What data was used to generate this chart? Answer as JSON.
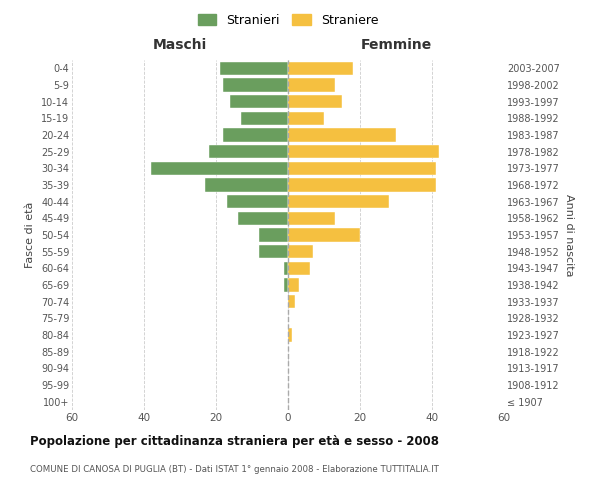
{
  "age_groups": [
    "100+",
    "95-99",
    "90-94",
    "85-89",
    "80-84",
    "75-79",
    "70-74",
    "65-69",
    "60-64",
    "55-59",
    "50-54",
    "45-49",
    "40-44",
    "35-39",
    "30-34",
    "25-29",
    "20-24",
    "15-19",
    "10-14",
    "5-9",
    "0-4"
  ],
  "birth_years": [
    "≤ 1907",
    "1908-1912",
    "1913-1917",
    "1918-1922",
    "1923-1927",
    "1928-1932",
    "1933-1937",
    "1938-1942",
    "1943-1947",
    "1948-1952",
    "1953-1957",
    "1958-1962",
    "1963-1967",
    "1968-1972",
    "1973-1977",
    "1978-1982",
    "1983-1987",
    "1988-1992",
    "1993-1997",
    "1998-2002",
    "2003-2007"
  ],
  "maschi": [
    0,
    0,
    0,
    0,
    0,
    0,
    0,
    1,
    1,
    8,
    8,
    14,
    17,
    23,
    38,
    22,
    18,
    13,
    16,
    18,
    19
  ],
  "femmine": [
    0,
    0,
    0,
    0,
    1,
    0,
    2,
    3,
    6,
    7,
    20,
    13,
    28,
    41,
    41,
    42,
    30,
    10,
    15,
    13,
    18
  ],
  "color_maschi": "#6a9e5e",
  "color_femmine": "#f5c040",
  "title_main": "Popolazione per cittadinanza straniera per età e sesso - 2008",
  "title_sub": "COMUNE DI CANOSA DI PUGLIA (BT) - Dati ISTAT 1° gennaio 2008 - Elaborazione TUTTITALIA.IT",
  "xlabel_left": "Maschi",
  "xlabel_right": "Femmine",
  "ylabel_left": "Fasce di età",
  "ylabel_right": "Anni di nascita",
  "legend_maschi": "Stranieri",
  "legend_femmine": "Straniere",
  "xlim": 60,
  "background_color": "#ffffff",
  "grid_color": "#cccccc"
}
